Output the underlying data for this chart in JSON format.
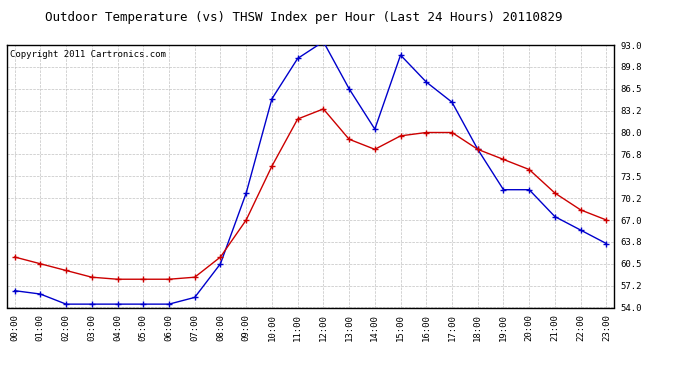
{
  "title": "Outdoor Temperature (vs) THSW Index per Hour (Last 24 Hours) 20110829",
  "copyright": "Copyright 2011 Cartronics.com",
  "hours": [
    "00:00",
    "01:00",
    "02:00",
    "03:00",
    "04:00",
    "05:00",
    "06:00",
    "07:00",
    "08:00",
    "09:00",
    "10:00",
    "11:00",
    "12:00",
    "13:00",
    "14:00",
    "15:00",
    "16:00",
    "17:00",
    "18:00",
    "19:00",
    "20:00",
    "21:00",
    "22:00",
    "23:00"
  ],
  "temp_red": [
    61.5,
    60.5,
    59.5,
    58.5,
    58.2,
    58.2,
    58.2,
    58.5,
    61.5,
    67.0,
    75.0,
    82.0,
    83.5,
    79.0,
    77.5,
    79.5,
    80.0,
    80.0,
    77.5,
    76.0,
    74.5,
    71.0,
    68.5,
    67.0
  ],
  "thsw_blue": [
    56.5,
    56.0,
    54.5,
    54.5,
    54.5,
    54.5,
    54.5,
    55.5,
    60.5,
    71.0,
    85.0,
    91.0,
    93.5,
    86.5,
    80.5,
    91.5,
    87.5,
    84.5,
    77.5,
    71.5,
    71.5,
    67.5,
    65.5,
    63.5
  ],
  "ylim_min": 54.0,
  "ylim_max": 93.0,
  "yticks": [
    54.0,
    57.2,
    60.5,
    63.8,
    67.0,
    70.2,
    73.5,
    76.8,
    80.0,
    83.2,
    86.5,
    89.8,
    93.0
  ],
  "red_color": "#cc0000",
  "blue_color": "#0000cc",
  "bg_color": "#ffffff",
  "plot_bg_color": "#ffffff",
  "grid_color": "#bbbbbb",
  "title_fontsize": 9,
  "copyright_fontsize": 6.5
}
